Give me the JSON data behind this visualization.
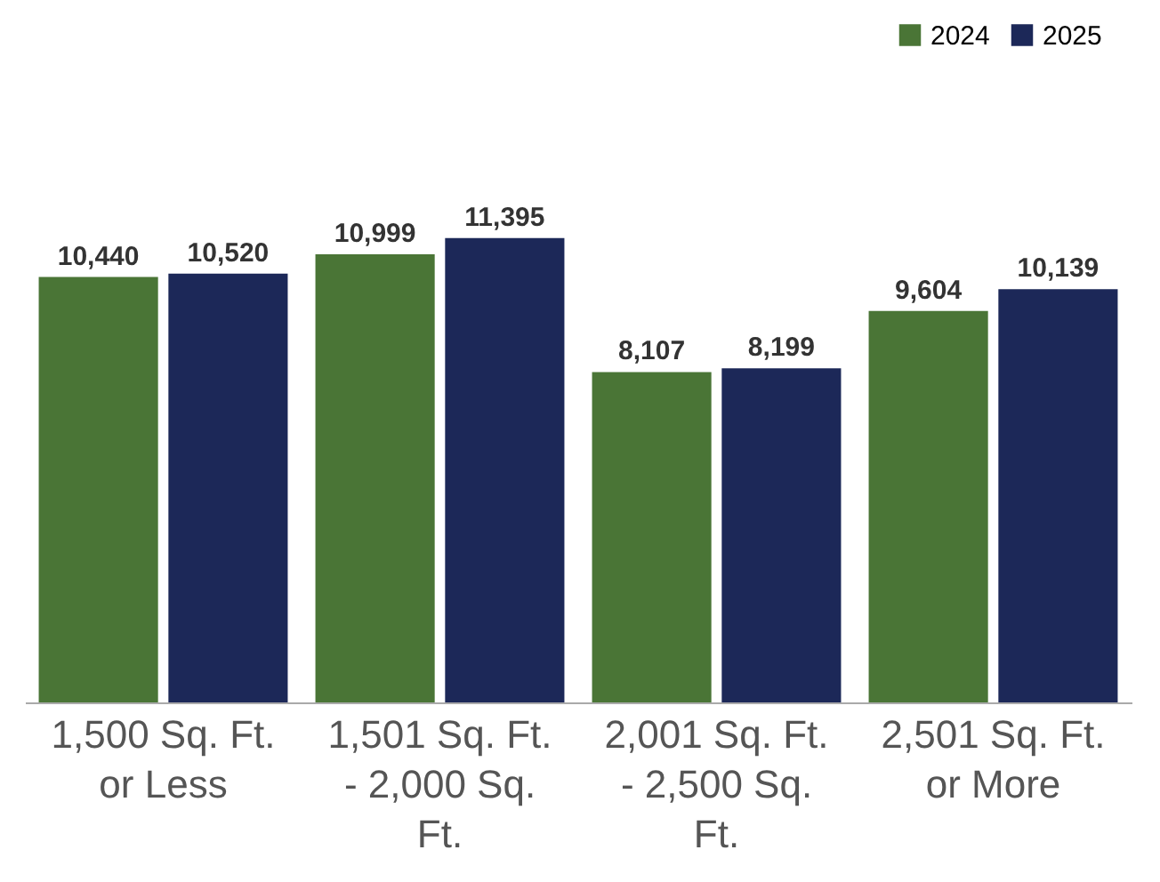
{
  "chart_data": {
    "type": "bar",
    "categories": [
      "1,500 Sq. Ft. or Less",
      "1,501 Sq. Ft. - 2,000 Sq. Ft.",
      "2,001 Sq. Ft. - 2,500 Sq. Ft.",
      "2,501 Sq. Ft. or More"
    ],
    "series": [
      {
        "name": "2024",
        "color": "#4a7536",
        "values": [
          10440,
          10999,
          8107,
          9604
        ],
        "value_labels": [
          "10,440",
          "10,999",
          "8,107",
          "9,604"
        ]
      },
      {
        "name": "2025",
        "color": "#1c2858",
        "values": [
          10520,
          11395,
          8199,
          10139
        ],
        "value_labels": [
          "10,520",
          "11,395",
          "8,199",
          "10,139"
        ]
      }
    ],
    "legend": "top right",
    "grid": false
  }
}
